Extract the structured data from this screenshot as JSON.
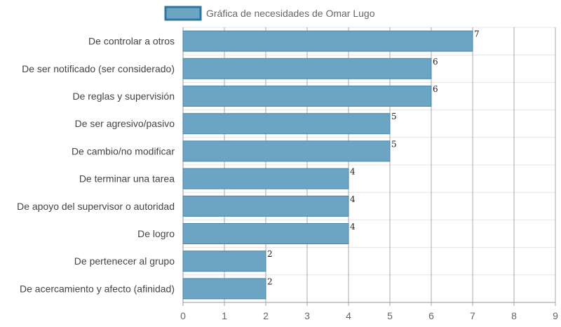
{
  "chart_data": {
    "type": "bar",
    "orientation": "horizontal",
    "legend": {
      "label": "Gráfica de necesidades de Omar Lugo",
      "placement": "top-center"
    },
    "categories": [
      "De controlar a otros",
      "De ser notificado (ser considerado)",
      "De reglas y supervisión",
      "De ser agresivo/pasivo",
      "De cambio/no modificar",
      "De terminar una tarea",
      "De apoyo del supervisor o autoridad",
      "De logro",
      "De pertenecer al grupo",
      "De acercamiento y afecto (afinidad)"
    ],
    "series": [
      {
        "name": "Gráfica de necesidades de Omar Lugo",
        "values": [
          7,
          6,
          6,
          5,
          5,
          4,
          4,
          4,
          2,
          2
        ]
      }
    ],
    "xlim": [
      0,
      9
    ],
    "xticks": [
      "0",
      "1",
      "2",
      "3",
      "4",
      "5",
      "6",
      "7",
      "8",
      "9"
    ],
    "grid": true,
    "data_labels": true,
    "colors": {
      "bar_fill": "#6ba5c3",
      "bar_stroke": "#4a86a8",
      "legend_fill": "#6ba5c3",
      "legend_stroke": "#2e75a0"
    }
  }
}
